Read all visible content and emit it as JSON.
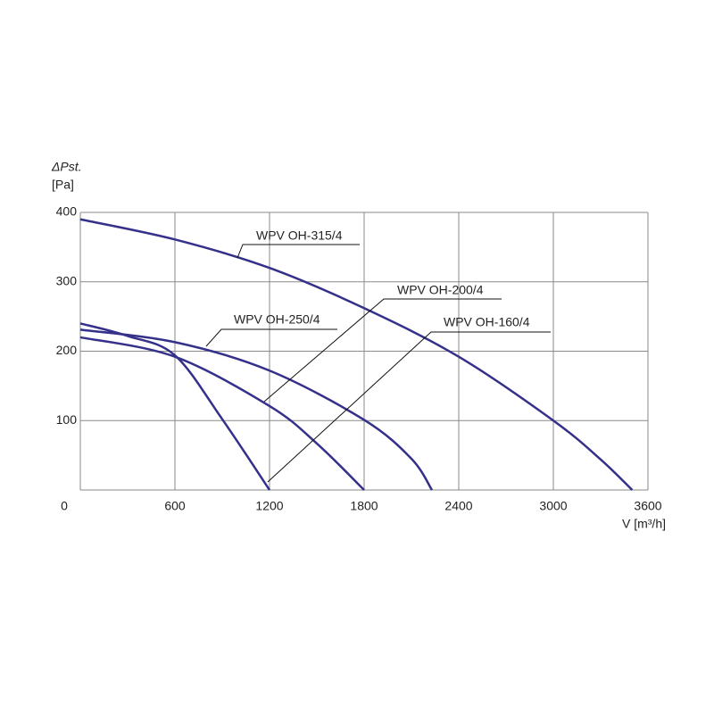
{
  "chart_data": {
    "type": "line",
    "y_label_1": "ΔPst.",
    "y_label_2": "[Pa]",
    "x_label": "V [m³/h]",
    "xlim": [
      0,
      3600
    ],
    "xticks": [
      0,
      600,
      1200,
      1800,
      2400,
      3000,
      3600
    ],
    "ylim": [
      0,
      400
    ],
    "yticks": [
      100,
      200,
      300,
      400
    ],
    "grid": true,
    "series": [
      {
        "name": "WPV OH-315/4",
        "color": "#35308a",
        "x": [
          0,
          600,
          1200,
          1800,
          2400,
          3000,
          3300,
          3500
        ],
        "values": [
          390,
          361,
          320,
          262,
          192,
          100,
          44,
          0
        ]
      },
      {
        "name": "WPV OH-250/4",
        "color": "#35308a",
        "x": [
          0,
          600,
          1200,
          1800,
          2100,
          2230
        ],
        "values": [
          231,
          213,
          172,
          101,
          45,
          0
        ]
      },
      {
        "name": "WPV OH-200/4",
        "color": "#35308a",
        "x": [
          0,
          600,
          1200,
          1500,
          1800
        ],
        "values": [
          220,
          192,
          121,
          67,
          0
        ]
      },
      {
        "name": "WPV OH-160/4",
        "color": "#35308a",
        "x": [
          0,
          300,
          600,
          900,
          1200
        ],
        "values": [
          240,
          222,
          194,
          102,
          0
        ]
      }
    ]
  }
}
